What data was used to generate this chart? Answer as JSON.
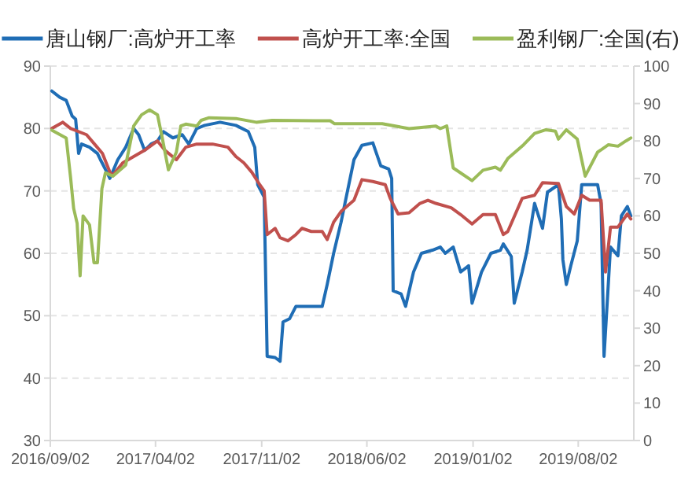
{
  "chart_data": {
    "type": "line",
    "xlim": [
      "2016-09-02",
      "2019-11-22"
    ],
    "xticks": [
      {
        "value": "2016-09-02",
        "label": "2016/09/02"
      },
      {
        "value": "2017-04-02",
        "label": "2017/04/02"
      },
      {
        "value": "2017-11-02",
        "label": "2017/11/02"
      },
      {
        "value": "2018-06-02",
        "label": "2018/06/02"
      },
      {
        "value": "2019-01-02",
        "label": "2019/01/02"
      },
      {
        "value": "2019-08-02",
        "label": "2019/08/02"
      }
    ],
    "ylim": [
      30,
      90
    ],
    "yticks": [
      30,
      40,
      50,
      60,
      70,
      80,
      90
    ],
    "y2lim": [
      0,
      100
    ],
    "y2ticks": [
      0,
      10,
      20,
      30,
      40,
      50,
      60,
      70,
      80,
      90,
      100
    ],
    "grid": "y",
    "legend": "top",
    "series": [
      {
        "name": "唐山钢厂:高炉开工率",
        "color": "#1f6db5",
        "x": [
          "2016-09-05",
          "2016-09-21",
          "2016-10-04",
          "2016-10-16",
          "2016-10-23",
          "2016-10-29",
          "2016-11-04",
          "2016-11-20",
          "2016-12-06",
          "2016-12-12",
          "2016-12-25",
          "2016-12-31",
          "2017-01-16",
          "2017-02-01",
          "2017-02-17",
          "2017-02-27",
          "2017-03-11",
          "2017-03-24",
          "2017-04-06",
          "2017-04-18",
          "2017-05-07",
          "2017-05-26",
          "2017-06-08",
          "2017-06-24",
          "2017-07-10",
          "2017-08-10",
          "2017-09-11",
          "2017-10-06",
          "2017-10-19",
          "2017-10-25",
          "2017-11-07",
          "2017-11-13",
          "2017-11-29",
          "2017-12-09",
          "2017-12-15",
          "2017-12-28",
          "2018-01-10",
          "2018-02-17",
          "2018-03-04",
          "2018-03-14",
          "2018-03-27",
          "2018-04-11",
          "2018-04-24",
          "2018-05-07",
          "2018-05-23",
          "2018-06-14",
          "2018-06-30",
          "2018-07-16",
          "2018-07-22",
          "2018-07-25",
          "2018-08-10",
          "2018-08-19",
          "2018-09-04",
          "2018-09-20",
          "2018-10-12",
          "2018-10-28",
          "2018-11-07",
          "2018-11-23",
          "2018-12-08",
          "2018-12-24",
          "2018-12-31",
          "2019-01-19",
          "2019-02-07",
          "2019-02-26",
          "2019-03-04",
          "2019-03-20",
          "2019-03-26",
          "2019-04-11",
          "2019-04-21",
          "2019-05-06",
          "2019-05-22",
          "2019-06-01",
          "2019-06-23",
          "2019-06-29",
          "2019-07-02",
          "2019-07-09",
          "2019-07-18",
          "2019-07-31",
          "2019-08-09",
          "2019-09-10",
          "2019-09-17",
          "2019-09-23",
          "2019-10-06",
          "2019-10-21",
          "2019-10-28",
          "2019-11-09",
          "2019-11-16"
        ],
        "values": [
          86,
          85,
          84.5,
          82,
          81.5,
          76,
          77.5,
          77,
          76,
          75,
          73,
          72,
          75,
          77,
          80,
          79,
          76.5,
          77.5,
          78,
          79.5,
          78.5,
          79,
          77.5,
          80,
          80.5,
          81,
          80.5,
          79.5,
          77,
          71,
          69,
          43.5,
          43.3,
          42.7,
          49,
          49.5,
          51.5,
          51.5,
          51.5,
          55,
          60,
          65,
          70,
          75,
          77.3,
          77.7,
          74,
          73.5,
          72,
          54,
          53.5,
          51.5,
          57,
          60,
          60.5,
          61,
          60,
          61,
          57,
          58,
          52,
          57,
          60,
          60.5,
          61.5,
          59.5,
          52,
          57,
          60.5,
          68,
          64,
          69.8,
          71,
          65.5,
          59,
          55,
          58,
          62,
          71,
          71,
          68,
          43.5,
          61,
          59.6,
          66,
          67.5,
          66
        ]
      },
      {
        "name": "高炉开工率:全国",
        "color": "#c0504d",
        "x": [
          "2016-09-05",
          "2016-09-27",
          "2016-10-13",
          "2016-11-14",
          "2016-11-30",
          "2016-12-16",
          "2016-12-31",
          "2017-01-06",
          "2017-01-26",
          "2017-02-17",
          "2017-03-11",
          "2017-04-06",
          "2017-04-21",
          "2017-05-14",
          "2017-06-02",
          "2017-06-24",
          "2017-07-26",
          "2017-08-26",
          "2017-09-11",
          "2017-09-27",
          "2017-10-13",
          "2017-10-29",
          "2017-11-07",
          "2017-11-13",
          "2017-11-29",
          "2017-12-09",
          "2017-12-25",
          "2018-01-10",
          "2018-01-22",
          "2018-02-10",
          "2018-03-04",
          "2018-03-14",
          "2018-03-27",
          "2018-04-11",
          "2018-05-07",
          "2018-05-23",
          "2018-06-14",
          "2018-07-09",
          "2018-07-19",
          "2018-08-04",
          "2018-08-26",
          "2018-09-17",
          "2018-10-03",
          "2018-10-19",
          "2018-11-19",
          "2018-12-08",
          "2018-12-31",
          "2019-01-22",
          "2019-02-16",
          "2019-03-04",
          "2019-03-13",
          "2019-04-11",
          "2019-05-06",
          "2019-05-22",
          "2019-06-23",
          "2019-07-09",
          "2019-07-25",
          "2019-08-09",
          "2019-08-25",
          "2019-09-17",
          "2019-09-26",
          "2019-10-06",
          "2019-10-21",
          "2019-11-09",
          "2019-11-16"
        ],
        "values": [
          80,
          81,
          80,
          79,
          77.5,
          76,
          73,
          72.5,
          74.5,
          75.5,
          76.5,
          78,
          76.5,
          75,
          77,
          77.5,
          77.5,
          77,
          75.5,
          74.5,
          73,
          71,
          70,
          63,
          64,
          62.5,
          62,
          63,
          64,
          63.5,
          63.5,
          62.2,
          65,
          66.7,
          68.5,
          71.8,
          71.5,
          71,
          68.8,
          66.3,
          66.5,
          68,
          68.5,
          68,
          67.3,
          66.2,
          64.7,
          66.2,
          66.2,
          63,
          63.5,
          68.8,
          69.3,
          71.3,
          71.2,
          67.5,
          66.3,
          69.3,
          68.5,
          68.5,
          57,
          64.2,
          64.2,
          66.3,
          65.5
        ]
      },
      {
        "name": "盈利钢厂:全国(右)",
        "color": "#9bbb59",
        "axis": "y2",
        "x": [
          "2016-09-05",
          "2016-10-04",
          "2016-10-13",
          "2016-10-19",
          "2016-10-26",
          "2016-11-01",
          "2016-11-07",
          "2016-11-20",
          "2016-11-29",
          "2016-12-06",
          "2016-12-15",
          "2016-12-22",
          "2017-01-06",
          "2017-02-01",
          "2017-02-17",
          "2017-03-05",
          "2017-03-21",
          "2017-04-06",
          "2017-04-15",
          "2017-04-28",
          "2017-05-14",
          "2017-05-23",
          "2017-06-02",
          "2017-06-24",
          "2017-07-03",
          "2017-07-19",
          "2017-09-11",
          "2017-10-22",
          "2017-11-23",
          "2018-02-17",
          "2018-03-20",
          "2018-03-29",
          "2018-07-03",
          "2018-08-26",
          "2018-10-19",
          "2018-10-28",
          "2018-11-10",
          "2018-11-23",
          "2018-12-31",
          "2019-01-22",
          "2019-02-16",
          "2019-02-26",
          "2019-03-13",
          "2019-04-14",
          "2019-05-06",
          "2019-05-29",
          "2019-06-17",
          "2019-06-23",
          "2019-07-09",
          "2019-07-31",
          "2019-08-16",
          "2019-09-10",
          "2019-10-02",
          "2019-10-21",
          "2019-11-06",
          "2019-11-16"
        ],
        "values": [
          82.9,
          80.8,
          70,
          62,
          58,
          44,
          60,
          57.6,
          47.5,
          47.5,
          67.3,
          71.5,
          70.6,
          73.6,
          84,
          87,
          88.3,
          87,
          81.2,
          72.3,
          77,
          84,
          84.5,
          84,
          85.5,
          86.2,
          86,
          85,
          85.5,
          85.4,
          85.4,
          84.6,
          84.6,
          83.3,
          84,
          83.3,
          84,
          72.8,
          69.4,
          72.2,
          73,
          72.2,
          75.3,
          79,
          82,
          83,
          82.6,
          80.5,
          83,
          80.5,
          70.6,
          77,
          79,
          78.6,
          80,
          80.8
        ]
      }
    ]
  }
}
